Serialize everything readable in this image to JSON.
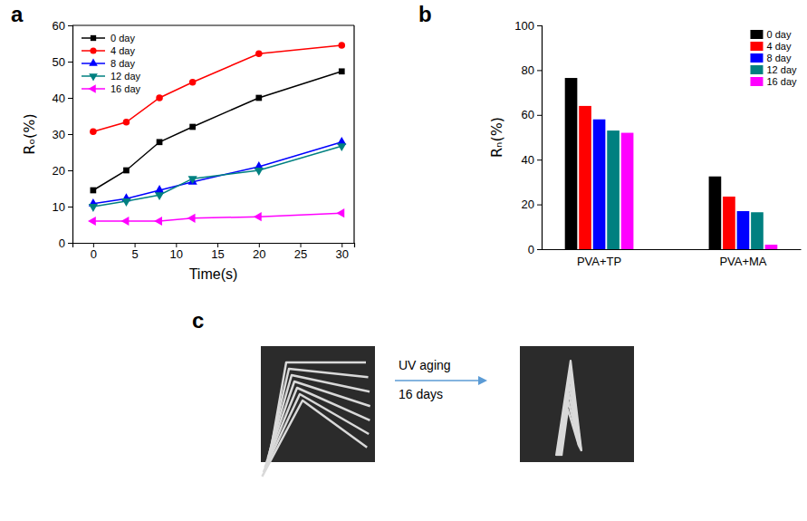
{
  "chart_data": [
    {
      "type": "line",
      "xlabel": "Time(s)",
      "ylabel": "Rₒ(%)",
      "x": [
        0,
        4,
        8,
        12,
        20,
        30
      ],
      "xlim": [
        -2.5,
        31.5
      ],
      "xticks": [
        0,
        5,
        10,
        15,
        20,
        25,
        30
      ],
      "ylim": [
        0,
        60
      ],
      "yticks": [
        0,
        10,
        20,
        30,
        40,
        50,
        60
      ],
      "legend": "upper left",
      "series": [
        {
          "name": "0 day",
          "color": "#000000",
          "marker": "square",
          "values": [
            14.5,
            20,
            27.8,
            32,
            40,
            47.3
          ]
        },
        {
          "name": "4 day",
          "color": "#ff0000",
          "marker": "circle",
          "values": [
            30.7,
            33.3,
            40,
            44.3,
            52.2,
            54.5
          ]
        },
        {
          "name": "8 day",
          "color": "#0000ff",
          "marker": "triangle-up",
          "values": [
            10.8,
            12.2,
            14.5,
            16.8,
            21,
            27.8
          ]
        },
        {
          "name": "12 day",
          "color": "#008080",
          "marker": "triangle-down",
          "values": [
            10,
            11.5,
            13.2,
            17.7,
            20,
            26.7
          ]
        },
        {
          "name": "16 day",
          "color": "#ff00ff",
          "marker": "triangle-left",
          "values": [
            6,
            6,
            6,
            6.8,
            7.2,
            8.2
          ]
        }
      ]
    },
    {
      "type": "bar",
      "ylabel": "Rₙ(%)",
      "categories": [
        "PVA+TP",
        "PVA+MA"
      ],
      "ylim": [
        0,
        100
      ],
      "yticks": [
        0,
        20,
        40,
        60,
        80,
        100
      ],
      "legend": "upper right",
      "series": [
        {
          "name": "0 day",
          "color": "#000000",
          "values": [
            76.5,
            32.5
          ]
        },
        {
          "name": "4 day",
          "color": "#ff0000",
          "values": [
            64,
            23.5
          ]
        },
        {
          "name": "8 day",
          "color": "#0000ff",
          "values": [
            58,
            17
          ]
        },
        {
          "name": "12 day",
          "color": "#008080",
          "values": [
            53,
            16.5
          ]
        },
        {
          "name": "16 day",
          "color": "#ff00ff",
          "values": [
            52,
            2
          ]
        }
      ]
    }
  ],
  "panel_labels": [
    "a",
    "b",
    "c"
  ],
  "image_panel": {
    "arrow_text": [
      "UV aging",
      "16 days"
    ]
  }
}
